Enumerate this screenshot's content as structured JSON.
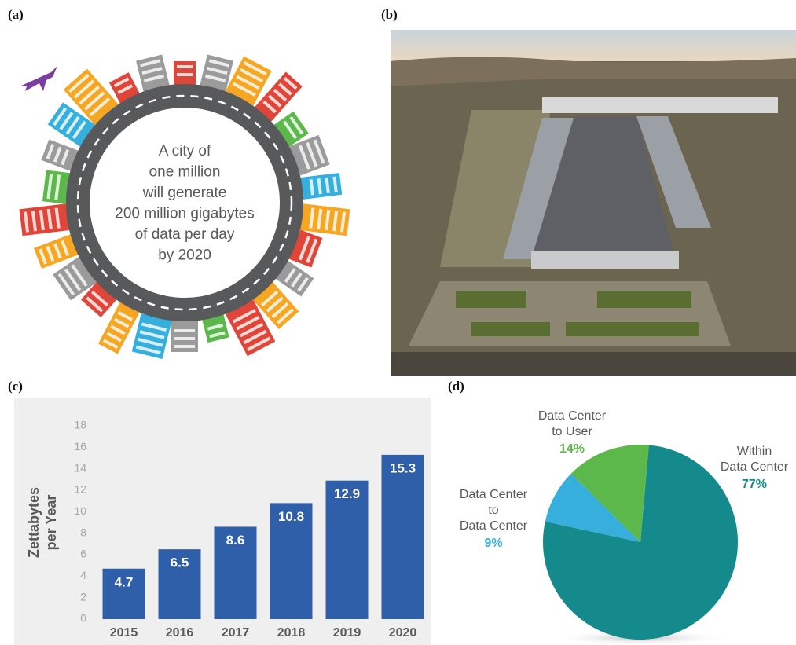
{
  "panels": [
    "(a)",
    "(b)",
    "(c)",
    "(d)"
  ],
  "illustration": {
    "text_lines": [
      "A city of",
      "one million",
      "will generate",
      "200 million gigabytes",
      "of data per day",
      "by 2020"
    ]
  },
  "chart_data": [
    {
      "type": "bar",
      "ylabel": "Zettabytes\nper Year",
      "categories": [
        "2015",
        "2016",
        "2017",
        "2018",
        "2019",
        "2020"
      ],
      "values": [
        4.7,
        6.5,
        8.6,
        10.8,
        12.9,
        15.3
      ],
      "color": "#2e5fa8",
      "ylim": [
        0,
        18
      ],
      "yticks": [
        0,
        2,
        4,
        6,
        8,
        10,
        12,
        14,
        16,
        18
      ],
      "grid": false
    },
    {
      "type": "pie",
      "categories": [
        "Within\nData Center",
        "Data Center\nto\nData Center",
        "Data Center\nto User"
      ],
      "values": [
        77,
        9,
        14
      ],
      "value_labels": [
        "77%",
        "9%",
        "14%"
      ],
      "colors": [
        "#148a8c",
        "#36afdd",
        "#5db84c"
      ]
    }
  ]
}
